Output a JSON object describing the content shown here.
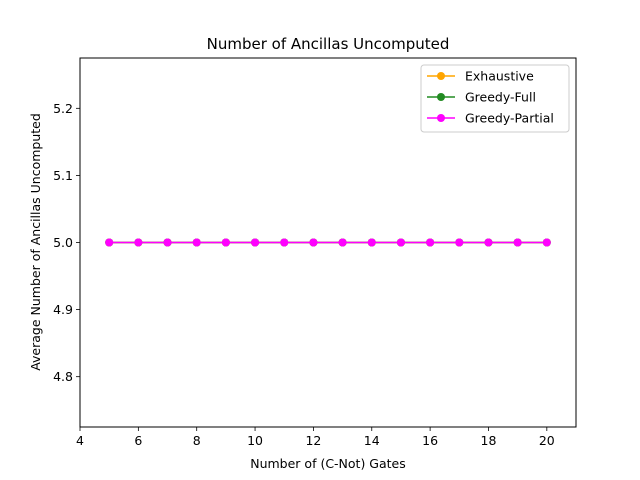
{
  "chart_data": {
    "type": "line",
    "title": "Number of Ancillas Uncomputed",
    "xlabel": "Number of (C-Not) Gates",
    "ylabel": "Average Number of Ancillas Uncomputed",
    "x": [
      5,
      6,
      7,
      8,
      9,
      10,
      11,
      12,
      13,
      14,
      15,
      16,
      17,
      18,
      19,
      20
    ],
    "xlim": [
      4,
      21
    ],
    "ylim": [
      4.725,
      5.275
    ],
    "xticks": [
      4,
      6,
      8,
      10,
      12,
      14,
      16,
      18,
      20
    ],
    "yticks": [
      4.8,
      4.9,
      5.0,
      5.1,
      5.2
    ],
    "xtick_labels": [
      "4",
      "6",
      "8",
      "10",
      "12",
      "14",
      "16",
      "18",
      "20"
    ],
    "ytick_labels": [
      "4.8",
      "4.9",
      "5.0",
      "5.1",
      "5.2"
    ],
    "grid": false,
    "legend_position": "top-right",
    "series": [
      {
        "name": "Exhaustive",
        "color": "#ffa500",
        "values": [
          5,
          5,
          5,
          5,
          5,
          5,
          5,
          5,
          5,
          5,
          5,
          5,
          5,
          5,
          5,
          5
        ]
      },
      {
        "name": "Greedy-Full",
        "color": "#228b22",
        "values": [
          5,
          5,
          5,
          5,
          5,
          5,
          5,
          5,
          5,
          5,
          5,
          5,
          5,
          5,
          5,
          5
        ]
      },
      {
        "name": "Greedy-Partial",
        "color": "#ff00ff",
        "values": [
          5,
          5,
          5,
          5,
          5,
          5,
          5,
          5,
          5,
          5,
          5,
          5,
          5,
          5,
          5,
          5
        ]
      }
    ]
  }
}
